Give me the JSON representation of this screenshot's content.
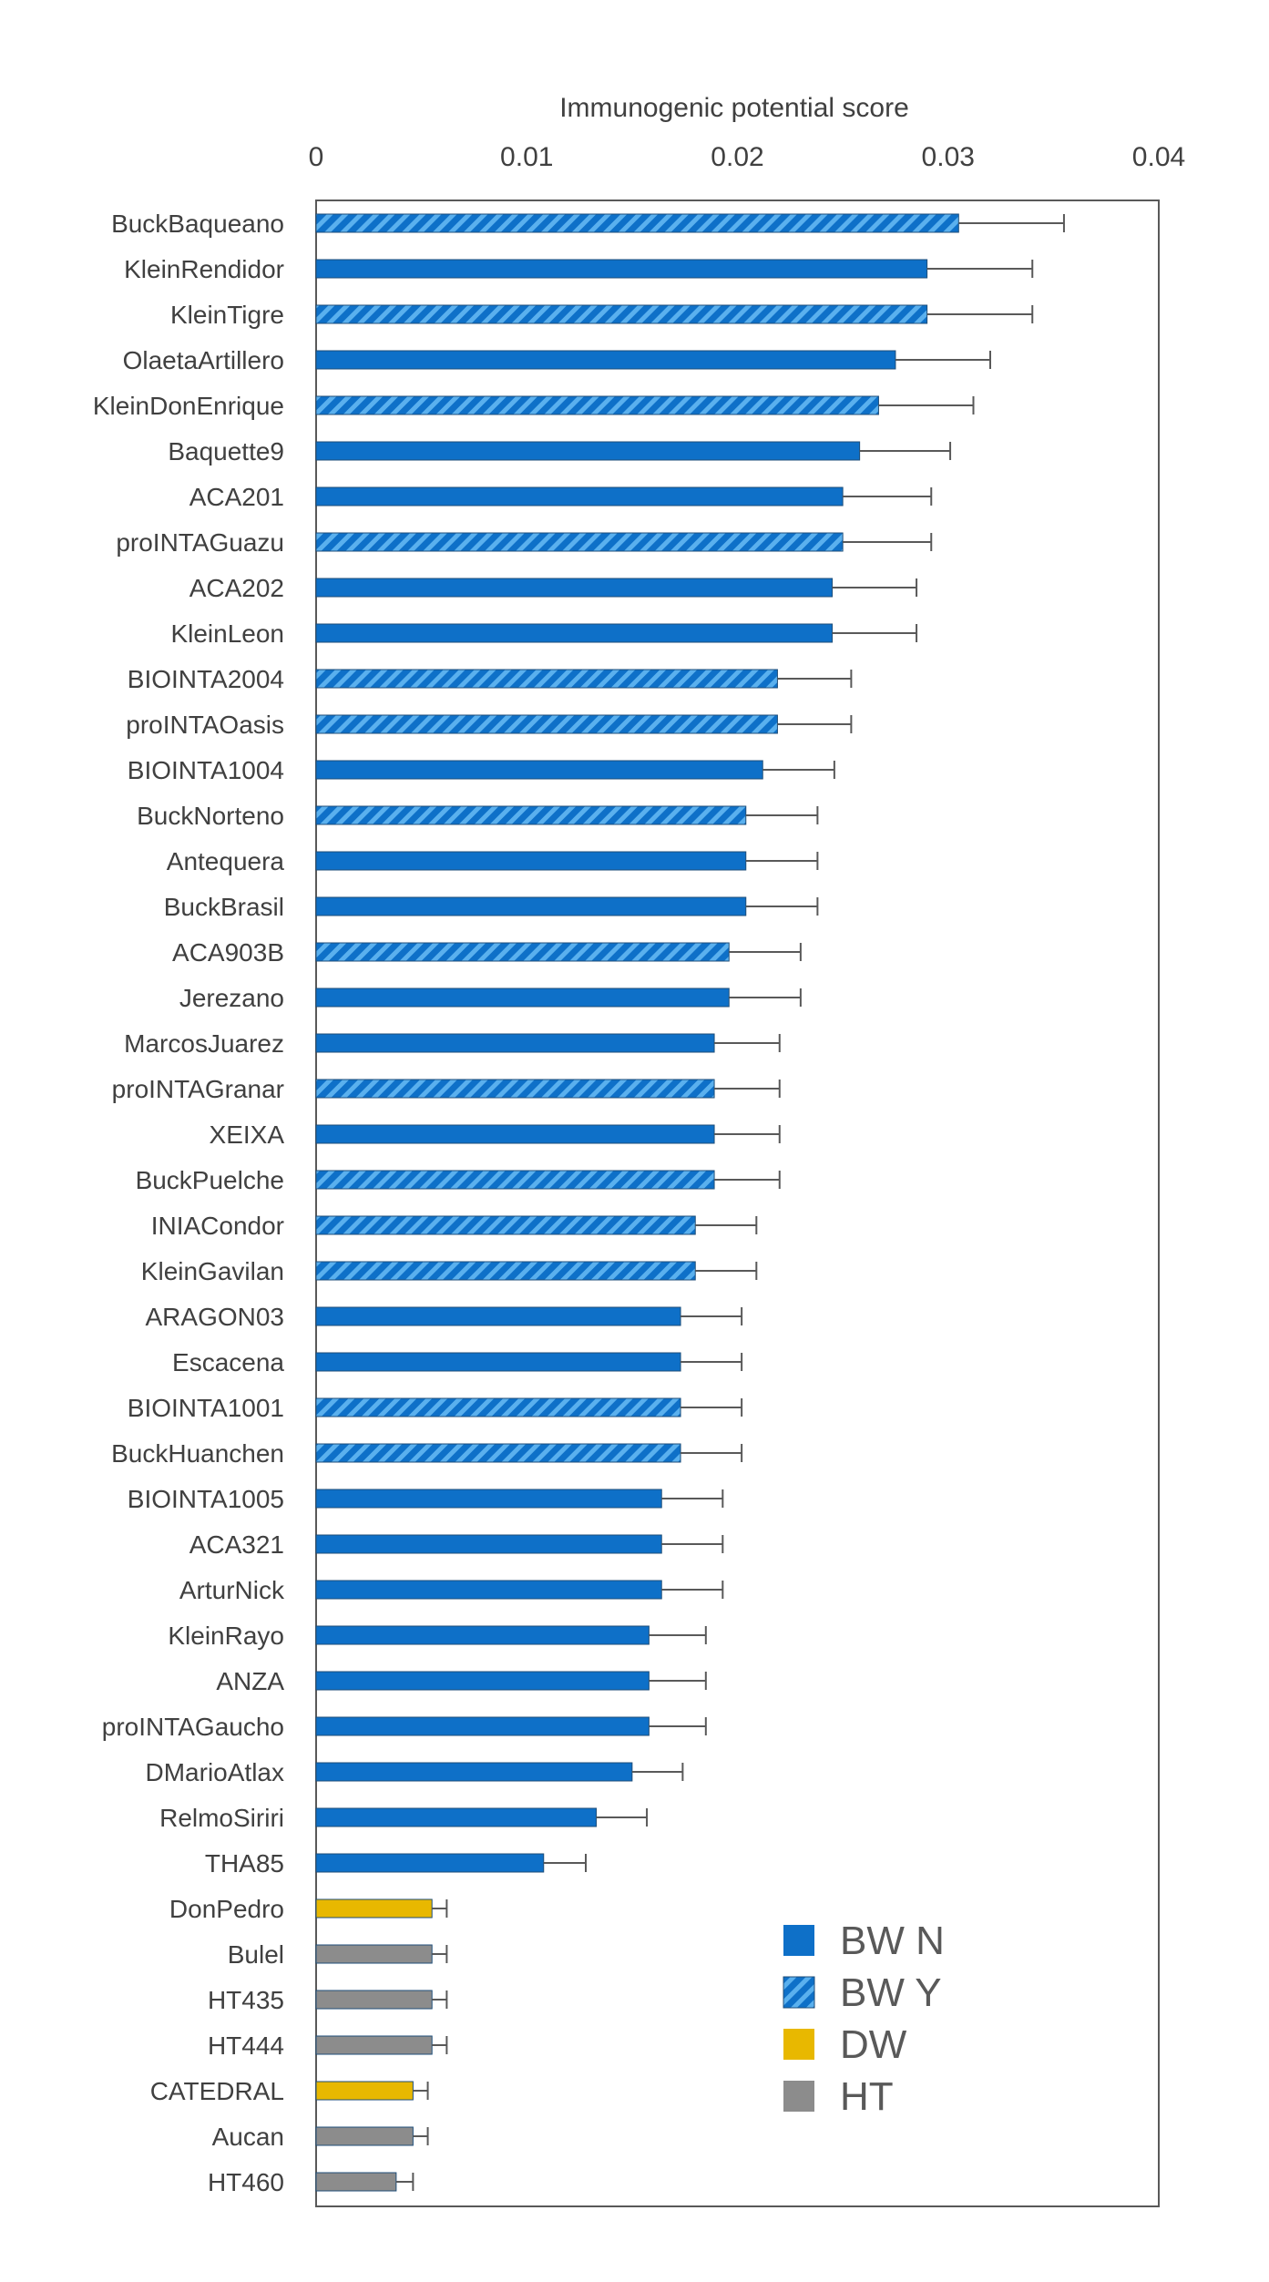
{
  "chart_data": {
    "type": "bar",
    "orientation": "horizontal",
    "title": "",
    "xlabel": "Immunogenic potential score",
    "ylabel": "",
    "xlim": [
      0,
      0.04
    ],
    "xticks": [
      "0",
      "0.01",
      "0.02",
      "0.03",
      "0.04"
    ],
    "xtick_values": [
      0,
      0.01,
      0.02,
      0.03,
      0.04
    ],
    "grid": false,
    "legend_position": "bottom-right",
    "legend": [
      {
        "key": "BWN",
        "label": "BW N",
        "color": "#0E70C8",
        "hatched": false
      },
      {
        "key": "BWY",
        "label": "BW Y",
        "color": "#0E70C8",
        "hatched": true
      },
      {
        "key": "DW",
        "label": "DW",
        "color": "#E8B800",
        "hatched": false
      },
      {
        "key": "HT",
        "label": "HT",
        "color": "#8C8C8C",
        "hatched": false
      }
    ],
    "bars": [
      {
        "label": "BuckBaqueano",
        "value": 0.0305,
        "error": 0.005,
        "group": "BWY"
      },
      {
        "label": "KleinRendidor",
        "value": 0.029,
        "error": 0.005,
        "group": "BWN"
      },
      {
        "label": "KleinTigre",
        "value": 0.029,
        "error": 0.005,
        "group": "BWY"
      },
      {
        "label": "OlaetaArtillero",
        "value": 0.0275,
        "error": 0.0045,
        "group": "BWN"
      },
      {
        "label": "KleinDonEnrique",
        "value": 0.0267,
        "error": 0.0045,
        "group": "BWY"
      },
      {
        "label": "Baquette9",
        "value": 0.0258,
        "error": 0.0043,
        "group": "BWN"
      },
      {
        "label": "ACA201",
        "value": 0.025,
        "error": 0.0042,
        "group": "BWN"
      },
      {
        "label": "proINTAGuazu",
        "value": 0.025,
        "error": 0.0042,
        "group": "BWY"
      },
      {
        "label": "ACA202",
        "value": 0.0245,
        "error": 0.004,
        "group": "BWN"
      },
      {
        "label": "KleinLeon",
        "value": 0.0245,
        "error": 0.004,
        "group": "BWN"
      },
      {
        "label": "BIOINTA2004",
        "value": 0.0219,
        "error": 0.0035,
        "group": "BWY"
      },
      {
        "label": "proINTAOasis",
        "value": 0.0219,
        "error": 0.0035,
        "group": "BWY"
      },
      {
        "label": "BIOINTA1004",
        "value": 0.0212,
        "error": 0.0034,
        "group": "BWN"
      },
      {
        "label": "BuckNorteno",
        "value": 0.0204,
        "error": 0.0034,
        "group": "BWY"
      },
      {
        "label": "Antequera",
        "value": 0.0204,
        "error": 0.0034,
        "group": "BWN"
      },
      {
        "label": "BuckBrasil",
        "value": 0.0204,
        "error": 0.0034,
        "group": "BWN"
      },
      {
        "label": "ACA903B",
        "value": 0.0196,
        "error": 0.0034,
        "group": "BWY"
      },
      {
        "label": "Jerezano",
        "value": 0.0196,
        "error": 0.0034,
        "group": "BWN"
      },
      {
        "label": "MarcosJuarez",
        "value": 0.0189,
        "error": 0.0031,
        "group": "BWN"
      },
      {
        "label": "proINTAGranar",
        "value": 0.0189,
        "error": 0.0031,
        "group": "BWY"
      },
      {
        "label": "XEIXA",
        "value": 0.0189,
        "error": 0.0031,
        "group": "BWN"
      },
      {
        "label": "BuckPuelche",
        "value": 0.0189,
        "error": 0.0031,
        "group": "BWY"
      },
      {
        "label": "INIACondor",
        "value": 0.018,
        "error": 0.0029,
        "group": "BWY"
      },
      {
        "label": "KleinGavilan",
        "value": 0.018,
        "error": 0.0029,
        "group": "BWY"
      },
      {
        "label": "ARAGON03",
        "value": 0.0173,
        "error": 0.0029,
        "group": "BWN"
      },
      {
        "label": "Escacena",
        "value": 0.0173,
        "error": 0.0029,
        "group": "BWN"
      },
      {
        "label": "BIOINTA1001",
        "value": 0.0173,
        "error": 0.0029,
        "group": "BWY"
      },
      {
        "label": "BuckHuanchen",
        "value": 0.0173,
        "error": 0.0029,
        "group": "BWY"
      },
      {
        "label": "BIOINTA1005",
        "value": 0.0164,
        "error": 0.0029,
        "group": "BWN"
      },
      {
        "label": "ACA321",
        "value": 0.0164,
        "error": 0.0029,
        "group": "BWN"
      },
      {
        "label": "ArturNick",
        "value": 0.0164,
        "error": 0.0029,
        "group": "BWN"
      },
      {
        "label": "KleinRayo",
        "value": 0.0158,
        "error": 0.0027,
        "group": "BWN"
      },
      {
        "label": "ANZA",
        "value": 0.0158,
        "error": 0.0027,
        "group": "BWN"
      },
      {
        "label": "proINTAGaucho",
        "value": 0.0158,
        "error": 0.0027,
        "group": "BWN"
      },
      {
        "label": "DMarioAtlax",
        "value": 0.015,
        "error": 0.0024,
        "group": "BWN"
      },
      {
        "label": "RelmoSiriri",
        "value": 0.0133,
        "error": 0.0024,
        "group": "BWN"
      },
      {
        "label": "THA85",
        "value": 0.0108,
        "error": 0.002,
        "group": "BWN"
      },
      {
        "label": "DonPedro",
        "value": 0.0055,
        "error": 0.0007,
        "group": "DW"
      },
      {
        "label": "Bulel",
        "value": 0.0055,
        "error": 0.0007,
        "group": "HT"
      },
      {
        "label": "HT435",
        "value": 0.0055,
        "error": 0.0007,
        "group": "HT"
      },
      {
        "label": "HT444",
        "value": 0.0055,
        "error": 0.0007,
        "group": "HT"
      },
      {
        "label": "CATEDRAL",
        "value": 0.0046,
        "error": 0.0007,
        "group": "DW"
      },
      {
        "label": "Aucan",
        "value": 0.0046,
        "error": 0.0007,
        "group": "HT"
      },
      {
        "label": "HT460",
        "value": 0.0038,
        "error": 0.0008,
        "group": "HT"
      }
    ]
  }
}
